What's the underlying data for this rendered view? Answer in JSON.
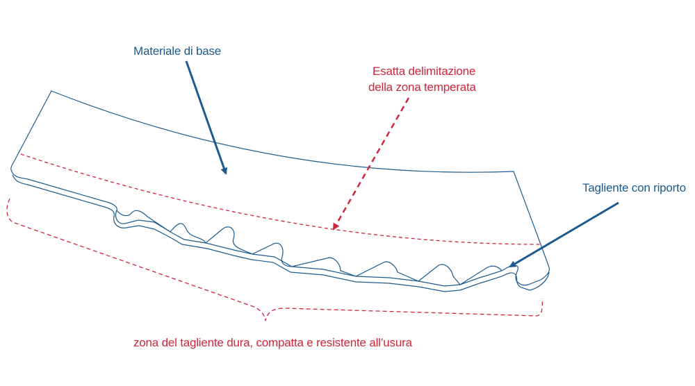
{
  "labels": {
    "base_material": "Materiale di base",
    "temper_zone_line1": "Esatta delimitazione",
    "temper_zone_line2": "della zona temperata",
    "cutting_edge": "Tagliente con  riporto",
    "hard_zone": "zona del tagliente dura, compatta e resistente all’usura"
  },
  "colors": {
    "outline": "#1d5a8e",
    "arrow_blue": "#1d5a8e",
    "dashed_red": "#d0253a",
    "background": "#ffffff"
  }
}
